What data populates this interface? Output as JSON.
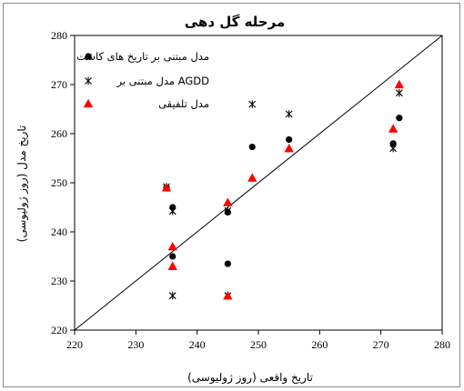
{
  "chart_data": {
    "type": "scatter",
    "title": "مرحله گل دهی",
    "xlabel": "تاریخ واقعی (روز ژولیوسی)",
    "ylabel": "تاریخ مدل (روز ژولیوسی)",
    "xlim": [
      220,
      280
    ],
    "ylim": [
      220,
      280
    ],
    "x_ticks": [
      220,
      230,
      240,
      250,
      260,
      270,
      280
    ],
    "y_ticks": [
      220,
      230,
      240,
      250,
      260,
      270,
      280
    ],
    "grid": false,
    "legend_position": "top-left",
    "reference_line": {
      "from": [
        220,
        220
      ],
      "to": [
        280,
        280
      ]
    },
    "series": [
      {
        "name": "مدل مبتنی بر تاریخ های کاشت",
        "marker": "circle",
        "color": "#000000",
        "points": [
          [
            235,
            249
          ],
          [
            236,
            245
          ],
          [
            236,
            235
          ],
          [
            245,
            244
          ],
          [
            245,
            233.5
          ],
          [
            249,
            257.3
          ],
          [
            255,
            258.8
          ],
          [
            272,
            258
          ],
          [
            273,
            263.2
          ]
        ]
      },
      {
        "name": "مدل مبتنی بر AGDD",
        "marker": "asterisk",
        "color": "#000000",
        "points": [
          [
            235,
            249.2
          ],
          [
            236,
            244.2
          ],
          [
            236,
            227
          ],
          [
            245,
            244.3
          ],
          [
            245,
            227
          ],
          [
            249,
            266
          ],
          [
            255,
            264
          ],
          [
            272,
            257
          ],
          [
            273,
            268.3
          ]
        ]
      },
      {
        "name": "مدل تلفیقی",
        "marker": "triangle",
        "color": "#ff0000",
        "points": [
          [
            235,
            249
          ],
          [
            236,
            237
          ],
          [
            236,
            233
          ],
          [
            245,
            246
          ],
          [
            245,
            227
          ],
          [
            249,
            251
          ],
          [
            255,
            257
          ],
          [
            272,
            261
          ],
          [
            273,
            270
          ]
        ]
      }
    ]
  }
}
